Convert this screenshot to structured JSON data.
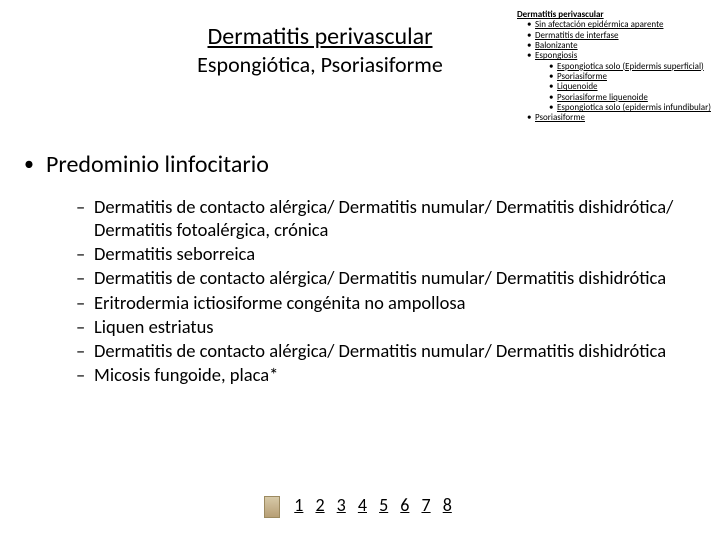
{
  "title": {
    "main": "Dermatitis perivascular",
    "sub": "Espongiótica, Psoriasiforme"
  },
  "sidenav": {
    "header": "Dermatitis perivascular",
    "items": [
      {
        "label": "Sin afectación epidérmica aparente"
      },
      {
        "label": "Dermatitis de interfase"
      },
      {
        "label": "Balonizante"
      },
      {
        "label": "Espongiosis",
        "children": [
          {
            "label": "Espongiotica solo (Epidermis superficial)"
          },
          {
            "label": "Psoriasiforme"
          },
          {
            "label": "Liquenoide"
          },
          {
            "label": "Psoriasiforme liquenoide"
          },
          {
            "label": "Espongiotica solo (epidermis infundibular)"
          }
        ]
      },
      {
        "label": "Psoriasiforme"
      }
    ]
  },
  "main": {
    "heading": "Predominio linfocitario",
    "items": [
      "Dermatitis de contacto alérgica/ Dermatitis numular/ Dermatitis dishidrótica/ Dermatitis fotoalérgica, crónica",
      "Dermatitis seborreica",
      "Dermatitis de contacto alérgica/ Dermatitis numular/ Dermatitis dishidrótica",
      "Eritrodermia ictiosiforme congénita no ampollosa",
      "Liquen estriatus",
      "Dermatitis de contacto alérgica/ Dermatitis numular/ Dermatitis dishidrótica",
      "Micosis fungoide, placa*"
    ]
  },
  "pager": {
    "pages": [
      "1",
      "2",
      "3",
      "4",
      "5",
      "6",
      "7",
      "8"
    ]
  }
}
